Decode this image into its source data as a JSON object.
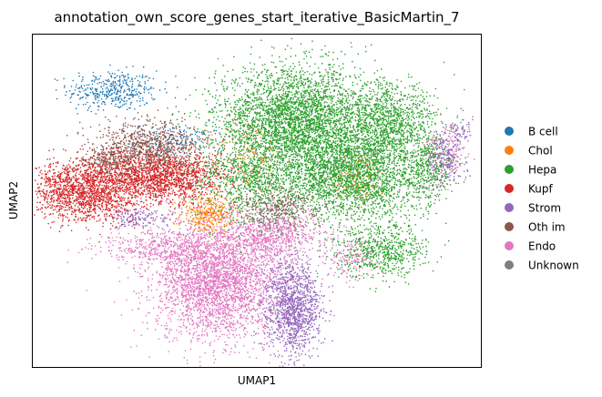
{
  "chart_data": {
    "type": "scatter",
    "title": "annotation_own_score_genes_start_iterative_BasicMartin_7",
    "xlabel": "UMAP1",
    "ylabel": "UMAP2",
    "ticks": "none",
    "grid": false,
    "legend_position": "right-outside",
    "xlim": [
      0,
      100
    ],
    "ylim": [
      0,
      100
    ],
    "series": [
      {
        "name": "B cell",
        "color": "#1f77b4",
        "clusters": [
          {
            "cx": 18,
            "cy": 83,
            "sx": 5,
            "sy": 3,
            "n": 400
          },
          {
            "cx": 33,
            "cy": 68,
            "sx": 5,
            "sy": 2.5,
            "n": 150
          }
        ]
      },
      {
        "name": "Chol",
        "color": "#ff7f0e",
        "clusters": [
          {
            "cx": 39,
            "cy": 46,
            "sx": 3,
            "sy": 3,
            "n": 350
          },
          {
            "cx": 48,
            "cy": 63,
            "sx": 4,
            "sy": 6,
            "n": 150
          },
          {
            "cx": 73,
            "cy": 57,
            "sx": 3,
            "sy": 4,
            "n": 120
          }
        ]
      },
      {
        "name": "Hepa",
        "color": "#2ca02c",
        "clusters": [
          {
            "cx": 59,
            "cy": 74,
            "sx": 9,
            "sy": 8,
            "n": 3600
          },
          {
            "cx": 71,
            "cy": 58,
            "sx": 8,
            "sy": 7,
            "n": 2600
          },
          {
            "cx": 80,
            "cy": 73,
            "sx": 5,
            "sy": 6,
            "n": 1000
          },
          {
            "cx": 78,
            "cy": 35,
            "sx": 5,
            "sy": 4,
            "n": 650
          },
          {
            "cx": 88,
            "cy": 60,
            "sx": 2.5,
            "sy": 5,
            "n": 350
          },
          {
            "cx": 49,
            "cy": 56,
            "sx": 6,
            "sy": 7,
            "n": 900
          }
        ]
      },
      {
        "name": "Kupf",
        "color": "#d62728",
        "clusters": [
          {
            "cx": 12,
            "cy": 53,
            "sx": 6.5,
            "sy": 4.5,
            "n": 1700
          },
          {
            "cx": 29,
            "cy": 57,
            "sx": 7,
            "sy": 4,
            "n": 1500
          }
        ]
      },
      {
        "name": "Strom",
        "color": "#9467bd",
        "clusters": [
          {
            "cx": 58,
            "cy": 18,
            "sx": 3.2,
            "sy": 7,
            "n": 1300
          },
          {
            "cx": 24,
            "cy": 45,
            "sx": 4,
            "sy": 1.5,
            "n": 150
          },
          {
            "cx": 92,
            "cy": 63,
            "sx": 2,
            "sy": 4,
            "n": 200
          },
          {
            "cx": 95,
            "cy": 71,
            "sx": 1.5,
            "sy": 2,
            "n": 60
          }
        ]
      },
      {
        "name": "Oth im",
        "color": "#8c564b",
        "clusters": [
          {
            "cx": 26,
            "cy": 66,
            "sx": 6,
            "sy": 4,
            "n": 900
          },
          {
            "cx": 17,
            "cy": 62,
            "sx": 3,
            "sy": 2,
            "n": 200
          },
          {
            "cx": 55,
            "cy": 48,
            "sx": 4,
            "sy": 3,
            "n": 250
          }
        ]
      },
      {
        "name": "Endo",
        "color": "#e377c2",
        "clusters": [
          {
            "cx": 41,
            "cy": 26,
            "sx": 7,
            "sy": 9,
            "n": 3200
          },
          {
            "cx": 29,
            "cy": 36,
            "sx": 7,
            "sy": 2.5,
            "n": 450
          },
          {
            "cx": 54,
            "cy": 40,
            "sx": 6,
            "sy": 4,
            "n": 700
          },
          {
            "cx": 71,
            "cy": 33,
            "sx": 3,
            "sy": 3,
            "n": 150
          },
          {
            "cx": 92,
            "cy": 65,
            "sx": 2.5,
            "sy": 4,
            "n": 150
          }
        ]
      },
      {
        "name": "Unknown",
        "color": "#7f7f7f",
        "clusters": [
          {
            "cx": 53,
            "cy": 45,
            "sx": 3,
            "sy": 3,
            "n": 100
          },
          {
            "cx": 90,
            "cy": 56,
            "sx": 1.5,
            "sy": 2,
            "n": 50
          }
        ]
      }
    ]
  }
}
